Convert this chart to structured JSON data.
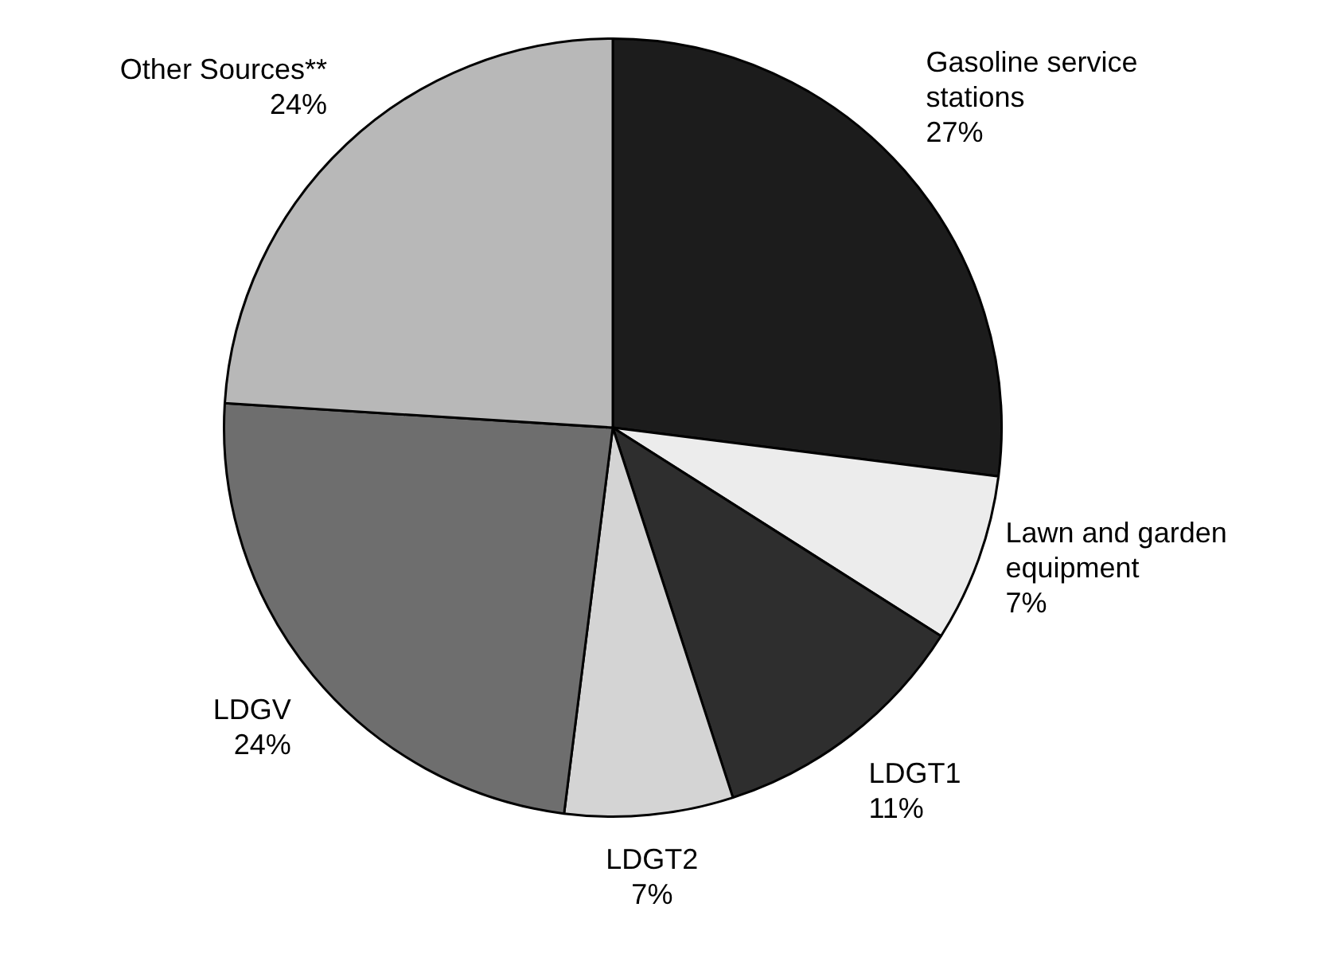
{
  "chart_data": {
    "type": "pie",
    "categories": [
      "Gasoline service stations",
      "Lawn and garden equipment",
      "LDGT1",
      "LDGT2",
      "LDGV",
      "Other Sources**"
    ],
    "values": [
      27,
      7,
      11,
      7,
      24,
      24
    ],
    "value_labels": [
      "27%",
      "7%",
      "11%",
      "7%",
      "24%",
      "24%"
    ],
    "colors": [
      "#1c1c1c",
      "#ececec",
      "#2e2e2e",
      "#d4d4d4",
      "#6e6e6e",
      "#b8b8b8"
    ],
    "legend": false
  }
}
